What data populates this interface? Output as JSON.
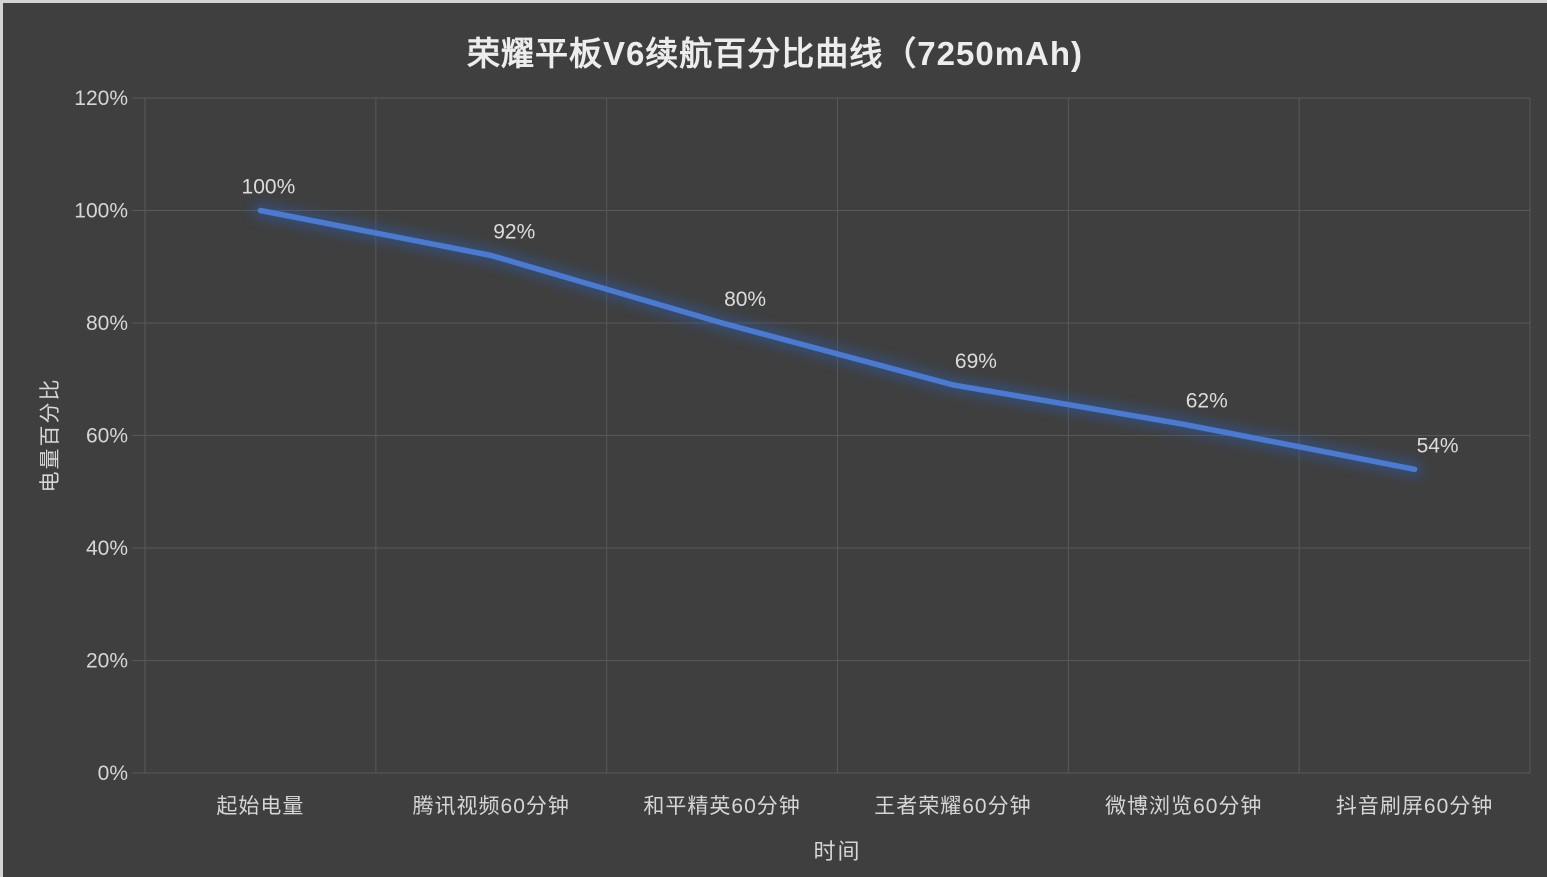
{
  "title": "荣耀平板V6续航百分比曲线（7250mAh)",
  "chart_data": {
    "type": "line",
    "title": "荣耀平板V6续航百分比曲线（7250mAh)",
    "categories": [
      "起始电量",
      "腾讯视频60分钟",
      "和平精英60分钟",
      "王者荣耀60分钟",
      "微博浏览60分钟",
      "抖音刷屏60分钟"
    ],
    "series": [
      {
        "name": "电量百分比",
        "values": [
          100,
          92,
          80,
          69,
          62,
          54
        ]
      }
    ],
    "data_labels": [
      "100%",
      "92%",
      "80%",
      "69%",
      "62%",
      "54%"
    ],
    "xlabel": "时间",
    "ylabel": "电量百分比",
    "ylim": [
      0,
      120
    ],
    "ytick_step": 20,
    "ytick_labels": [
      "0%",
      "20%",
      "40%",
      "60%",
      "80%",
      "100%",
      "120%"
    ],
    "grid": true,
    "legend": "none"
  },
  "colors": {
    "background": "#3F3F3F",
    "frame_border": "#D4D4D4",
    "gridline": "#585858",
    "title_text": "#EDEDED",
    "tick_text": "#D6D6D6",
    "data_label_text": "#DCDCDC",
    "line": "#4A7AD1",
    "line_glow": "#2F5DA9"
  }
}
